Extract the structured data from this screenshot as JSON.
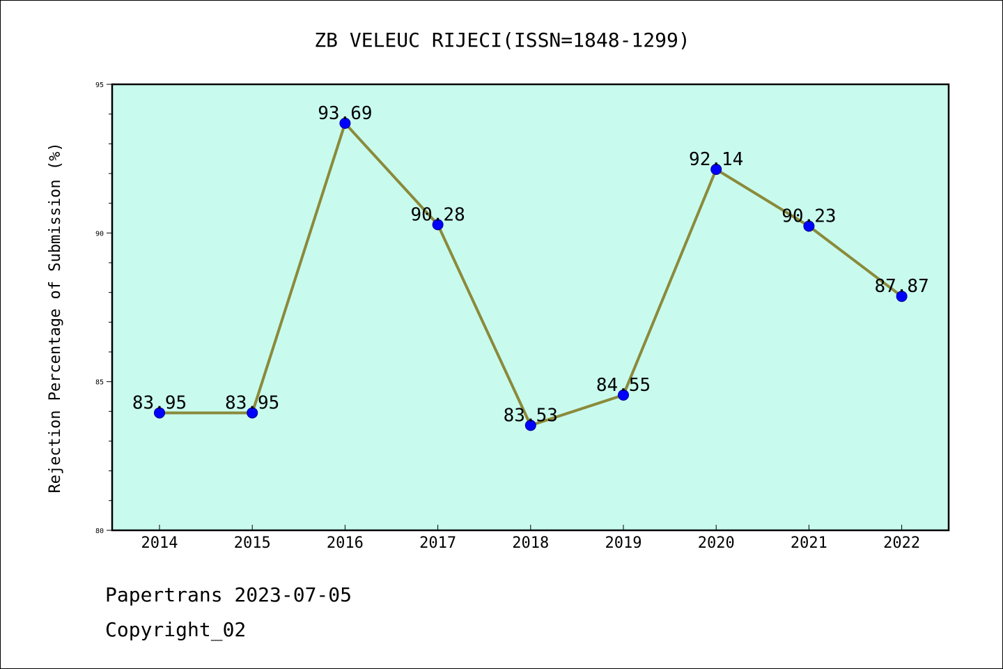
{
  "chart_data": {
    "type": "line",
    "title": "ZB VELEUC RIJECI(ISSN=1848-1299)",
    "xlabel": "",
    "ylabel": "Rejection Percentage of Submission (%)",
    "categories": [
      "2014",
      "2015",
      "2016",
      "2017",
      "2018",
      "2019",
      "2020",
      "2021",
      "2022"
    ],
    "series": [
      {
        "values": [
          83.95,
          83.95,
          93.69,
          90.28,
          83.53,
          84.55,
          92.14,
          90.23,
          87.87
        ],
        "labels": [
          "83.95",
          "83.95",
          "93.69",
          "90.28",
          "83.53",
          "84.55",
          "92.14",
          "90.23",
          "87.87"
        ]
      }
    ],
    "ylim": [
      80,
      95
    ],
    "yticks": [
      80,
      85,
      90,
      95
    ],
    "yminor_step": 1,
    "grid": false,
    "legend": "none",
    "colors": {
      "plot_background": "#c8fbee",
      "line": "#8b8a3b",
      "marker": "#0000ff",
      "marker_edge": "#00008b",
      "frame": "#000000"
    }
  },
  "footer": {
    "date_line": "Papertrans 2023-07-05",
    "copyright_line": "Copyright_02"
  }
}
